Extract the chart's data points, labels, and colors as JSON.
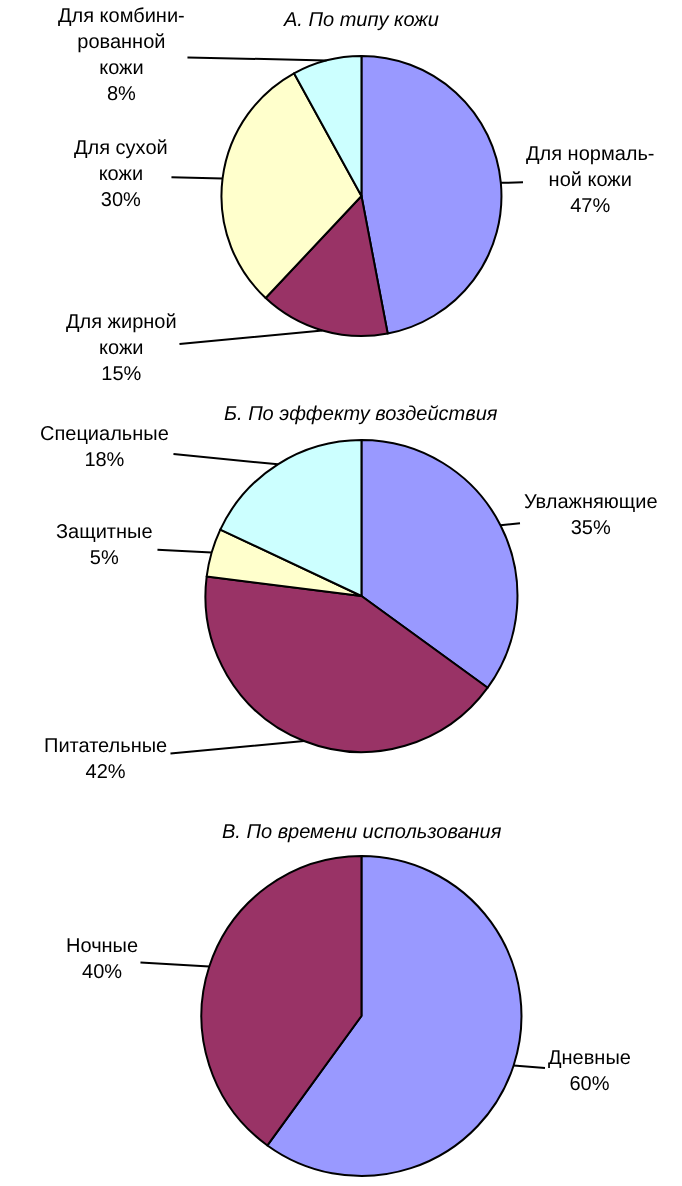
{
  "chart_data": [
    {
      "type": "pie",
      "title": "А. По типу кожи",
      "categories": [
        "Для нормаль-\nной кожи",
        "Для жирной\nкожи",
        "Для сухой\nкожи",
        "Для комбини-\nрованной\nкожи"
      ],
      "values": [
        47,
        15,
        30,
        8
      ],
      "value_labels": [
        "47%",
        "15%",
        "30%",
        "8%"
      ],
      "colors": [
        "#9999ff",
        "#993366",
        "#ffffcc",
        "#ccffff"
      ]
    },
    {
      "type": "pie",
      "title": "Б. По эффекту воздействия",
      "categories": [
        "Увлажняющие",
        "Питательные",
        "Защитные",
        "Специальные"
      ],
      "values": [
        35,
        42,
        5,
        18
      ],
      "value_labels": [
        "35%",
        "42%",
        "5%",
        "18%"
      ],
      "colors": [
        "#9999ff",
        "#993366",
        "#ffffcc",
        "#ccffff"
      ]
    },
    {
      "type": "pie",
      "title": "В. По времени использования",
      "categories": [
        "Дневные",
        "Ночные"
      ],
      "values": [
        60,
        40
      ],
      "value_labels": [
        "60%",
        "40%"
      ],
      "colors": [
        "#9999ff",
        "#993366"
      ]
    }
  ]
}
